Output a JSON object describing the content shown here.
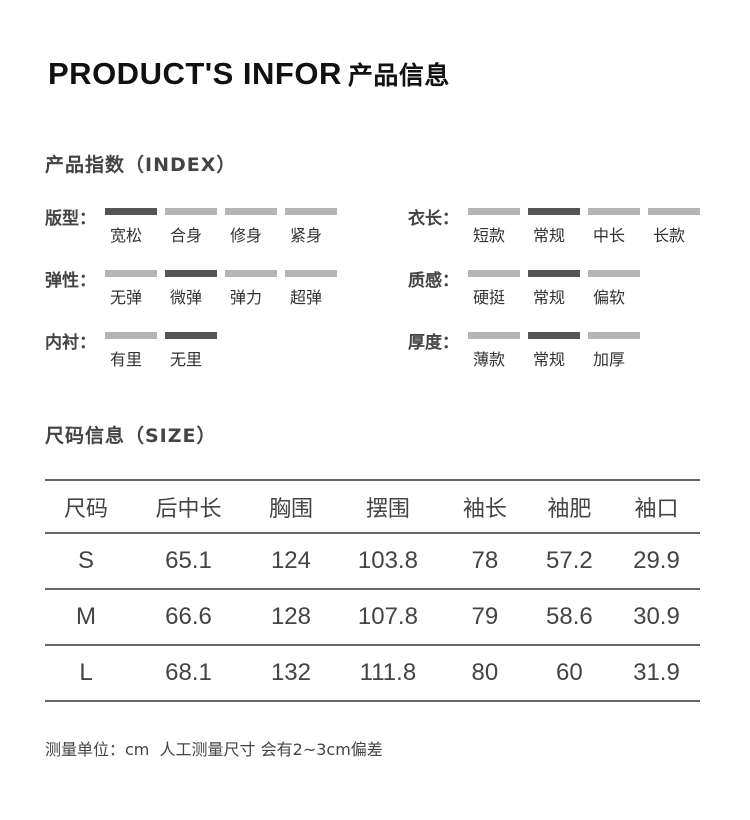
{
  "title": {
    "en": "PRODUCT'S INFOR",
    "cn": "产品信息"
  },
  "index_heading": "产品指数（INDEX）",
  "colors": {
    "selected": "#555555",
    "unselected": "#b5b5b5"
  },
  "attributes": [
    {
      "label": "版型：",
      "options": [
        "宽松",
        "合身",
        "修身",
        "紧身"
      ],
      "selected": 0
    },
    {
      "label": "衣长：",
      "options": [
        "短款",
        "常规",
        "中长",
        "长款"
      ],
      "selected": 1
    },
    {
      "label": "弹性：",
      "options": [
        "无弹",
        "微弹",
        "弹力",
        "超弹"
      ],
      "selected": 1
    },
    {
      "label": "质感：",
      "options": [
        "硬挺",
        "常规",
        "偏软"
      ],
      "selected": 1
    },
    {
      "label": "内衬：",
      "options": [
        "有里",
        "无里"
      ],
      "selected": 1
    },
    {
      "label": "厚度：",
      "options": [
        "薄款",
        "常规",
        "加厚"
      ],
      "selected": 1
    }
  ],
  "size_heading": "尺码信息（SIZE）",
  "size_table": {
    "headers": [
      "尺码",
      "后中长",
      "胸围",
      "摆围",
      "袖长",
      "袖肥",
      "袖口"
    ],
    "rows": [
      [
        "S",
        "65.1",
        "124",
        "103.8",
        "78",
        "57.2",
        "29.9"
      ],
      [
        "M",
        "66.6",
        "128",
        "107.8",
        "79",
        "58.6",
        "30.9"
      ],
      [
        "L",
        "68.1",
        "132",
        "111.8",
        "80",
        "60",
        "31.9"
      ]
    ]
  },
  "footnote": "测量单位：cm  人工测量尺寸 会有2~3cm偏差"
}
